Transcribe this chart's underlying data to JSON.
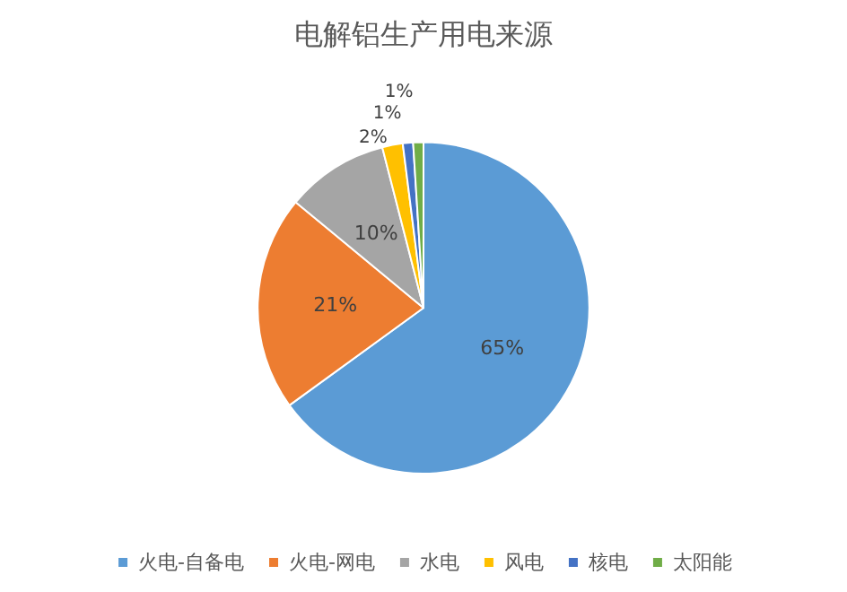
{
  "chart_data": {
    "type": "pie",
    "title": "电解铝生产用电来源",
    "categories": [
      "火电-自备电",
      "火电-网电",
      "水电",
      "风电",
      "核电",
      "太阳能"
    ],
    "values": [
      65,
      21,
      10,
      2,
      1,
      1
    ],
    "colors": [
      "#5b9bd5",
      "#ed7d31",
      "#a5a5a5",
      "#ffc000",
      "#4472c4",
      "#70ad47"
    ],
    "value_labels": [
      "65%",
      "21%",
      "10%",
      "2%",
      "1%",
      "1%"
    ],
    "legend": "bottom"
  }
}
